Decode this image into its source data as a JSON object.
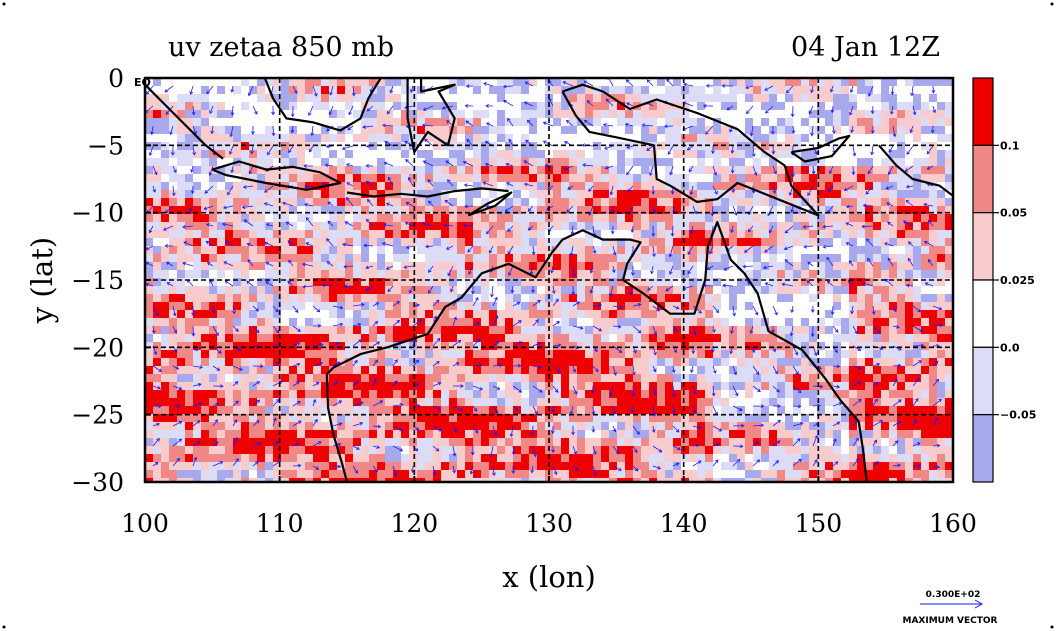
{
  "title_left": "uv zetaa 850 mb",
  "title_right": "04 Jan 12Z",
  "corner_label": "EQ",
  "chart_data": {
    "type": "heatmap",
    "xlabel": "x (lon)",
    "ylabel": "y (lat)",
    "xlim": [
      100,
      160
    ],
    "ylim": [
      -30,
      0
    ],
    "x_ticks": [
      "100",
      "110",
      "120",
      "130",
      "140",
      "150",
      "160"
    ],
    "y_ticks": [
      "0",
      "−5",
      "−10",
      "−15",
      "−20",
      "−25",
      "−30"
    ],
    "grid": true,
    "colorbar": {
      "levels": [
        "0.1",
        "0.05",
        "0.025",
        "0.0",
        "−0.05"
      ],
      "colors": [
        "#ee0000",
        "#f08888",
        "#f8cccc",
        "#ffffff",
        "#dcdcf6",
        "#a8a8ec"
      ]
    },
    "vector_reference": {
      "value": "0.300E+02",
      "label": "MAXIMUM VECTOR"
    },
    "field_color_max": "#ee0000",
    "vector_color": "#1a1aff",
    "coast_color": "#000000"
  }
}
